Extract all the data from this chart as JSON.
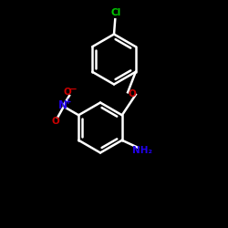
{
  "background": "#000000",
  "bond_color": "#ffffff",
  "bond_width": 1.8,
  "cl_color": "#00cc00",
  "o_color": "#cc0000",
  "n_color": "#2200ee",
  "nh2_color": "#2200ee",
  "o_ether_color": "#cc0000",
  "figsize": [
    2.5,
    2.5
  ],
  "dpi": 100,
  "cl_label": "Cl",
  "o_ether_label": "O",
  "nh2_label": "NH₂"
}
